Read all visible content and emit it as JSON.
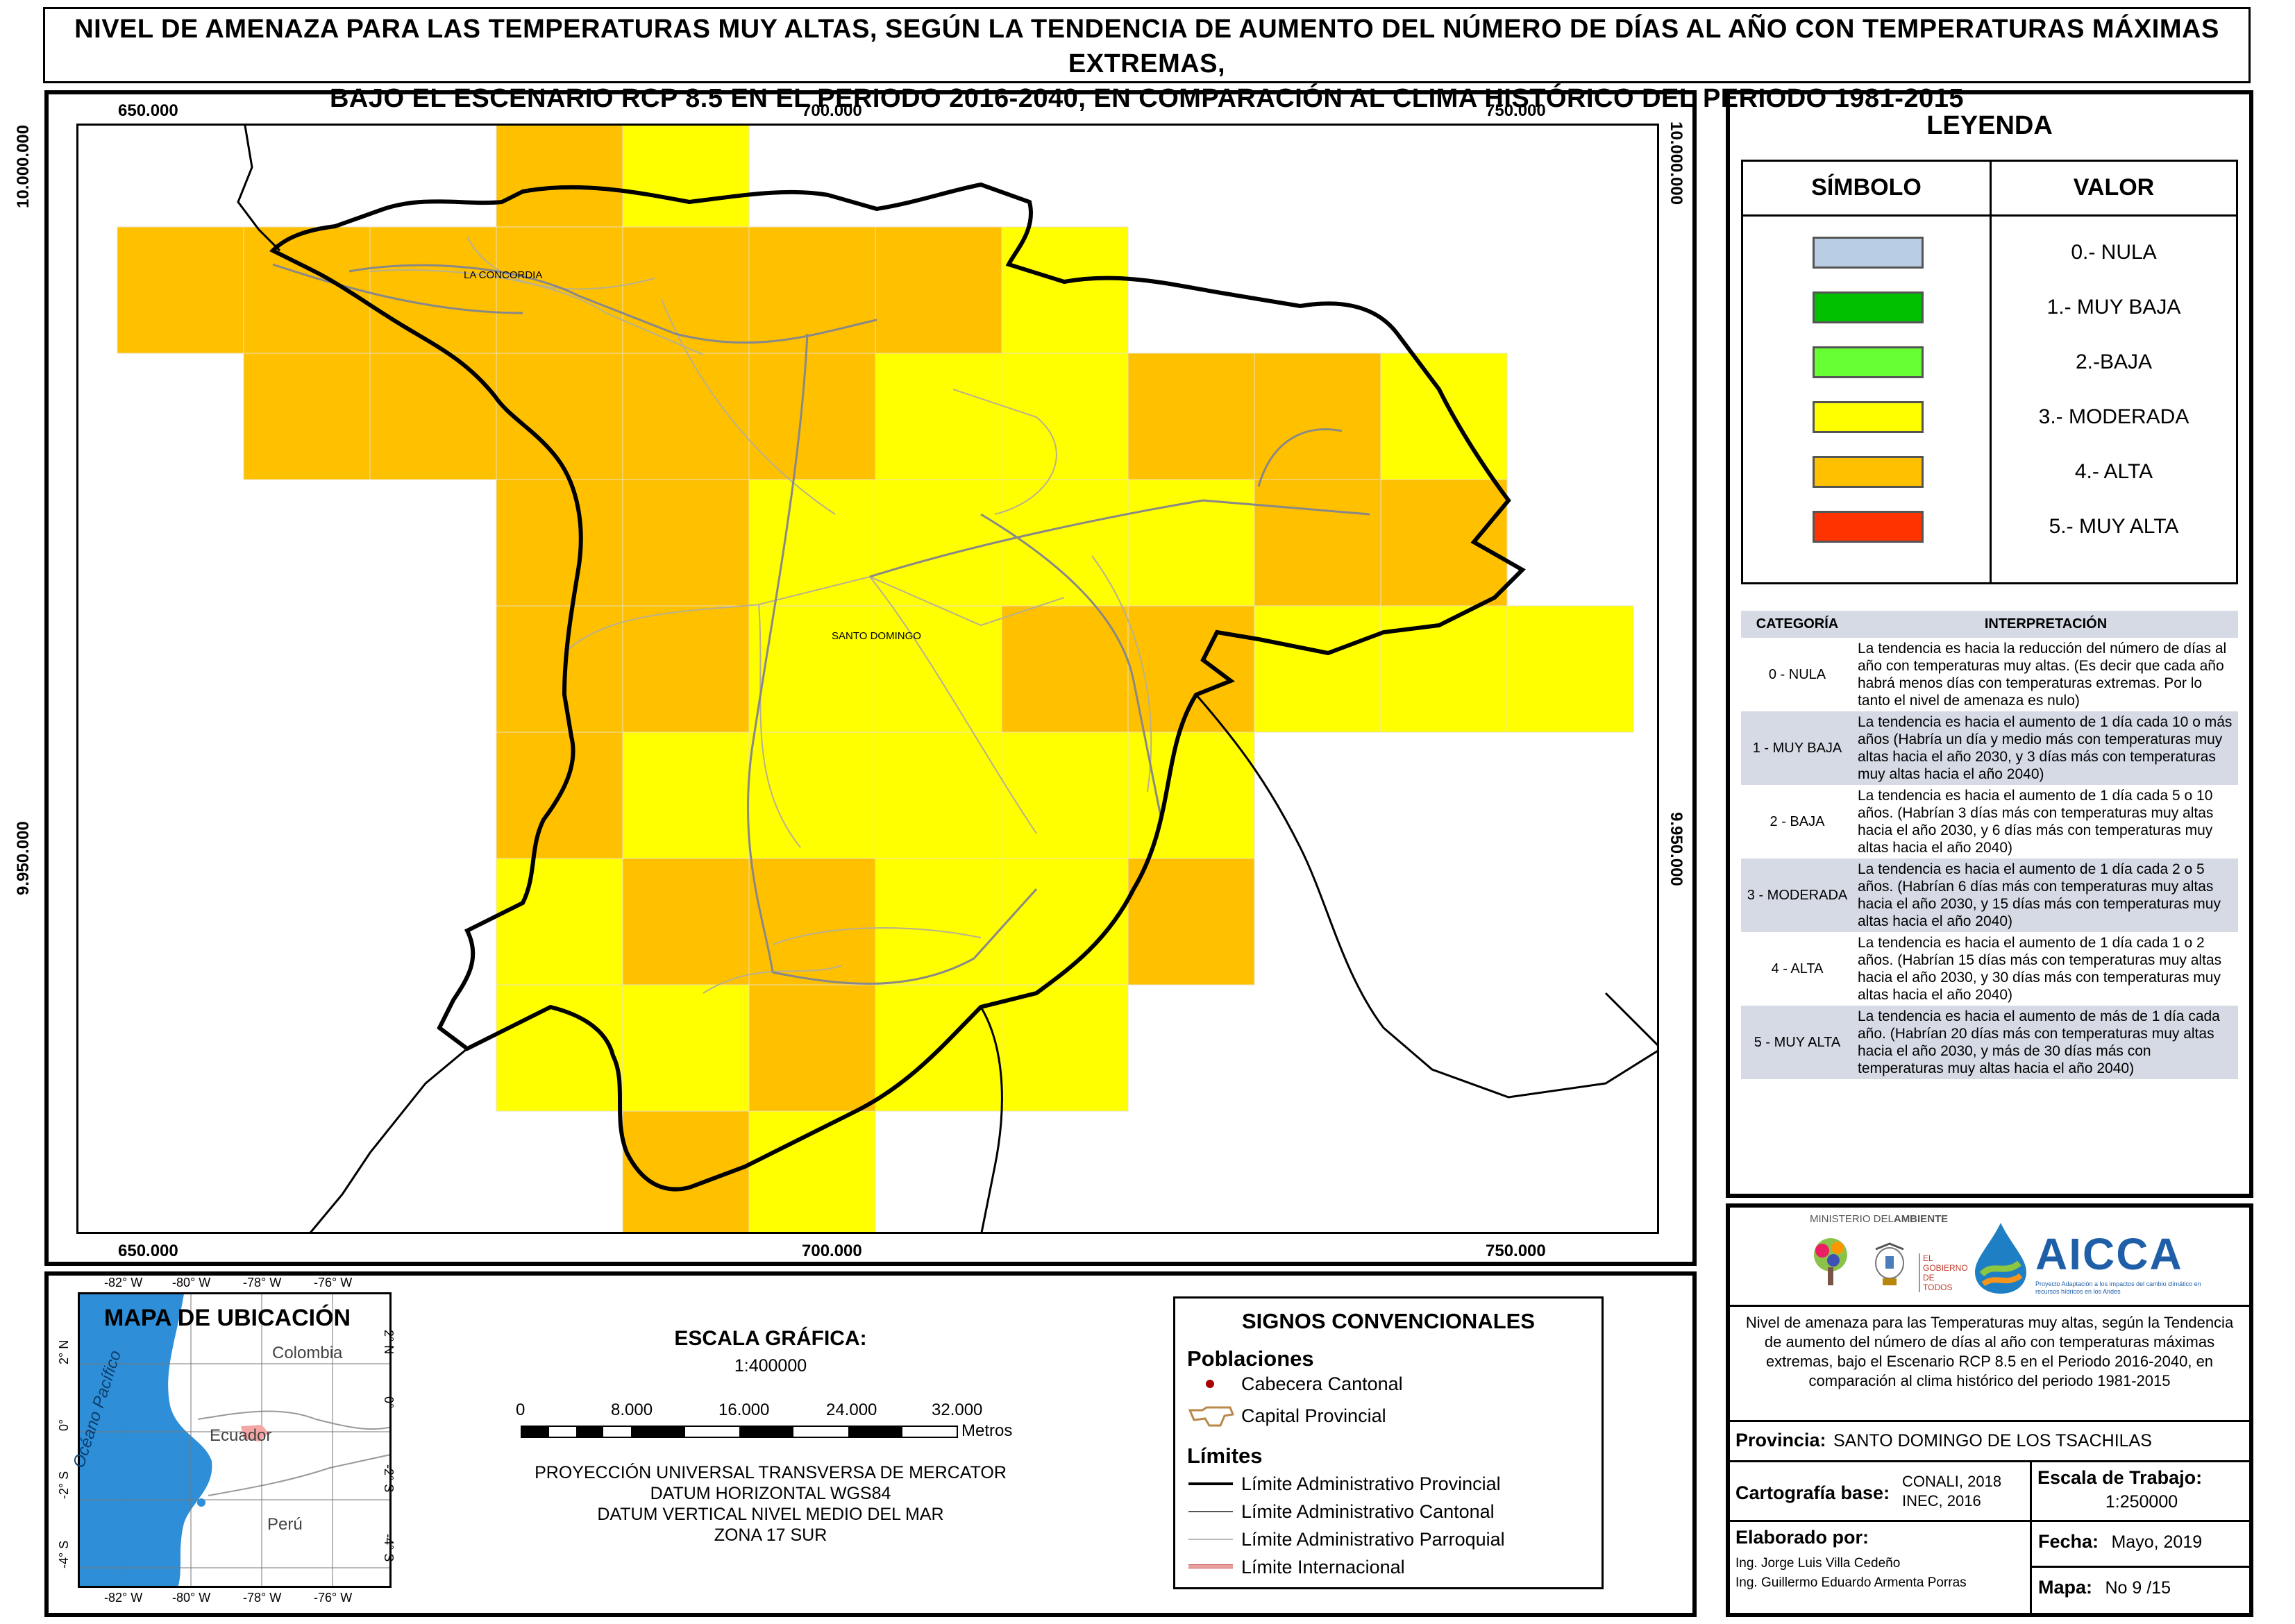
{
  "title": {
    "line1": "NIVEL DE AMENAZA PARA LAS TEMPERATURAS MUY ALTAS, SEGÚN LA TENDENCIA DE AUMENTO DEL NÚMERO DE DÍAS AL AÑO CON TEMPERATURAS MÁXIMAS EXTREMAS,",
    "line2": "BAJO EL ESCENARIO RCP 8.5 EN EL PERIODO 2016-2040, EN COMPARACIÓN AL CLIMA HISTÓRICO DEL PERIODO 1981-2015"
  },
  "map": {
    "x_ticks": [
      "650.000",
      "700.000",
      "750.000"
    ],
    "y_ticks": [
      "10.000.000",
      "9.950.000"
    ],
    "places": [
      "LA CONCORDIA",
      "SANTO DOMINGO"
    ],
    "colors": {
      "alta": "#ffc000",
      "moderada": "#ffff00"
    }
  },
  "legend": {
    "title": "LEYENDA",
    "col_symbol": "SÍMBOLO",
    "col_value": "VALOR",
    "items": [
      {
        "label": "0.- NULA",
        "color": "#b9cde5"
      },
      {
        "label": "1.- MUY BAJA",
        "color": "#00c000"
      },
      {
        "label": "2.-BAJA",
        "color": "#66ff33"
      },
      {
        "label": "3.- MODERADA",
        "color": "#ffff00"
      },
      {
        "label": "4.- ALTA",
        "color": "#ffc000"
      },
      {
        "label": "5.- MUY ALTA",
        "color": "#ff3300"
      }
    ]
  },
  "categories": {
    "col_cat": "CATEGORÍA",
    "col_interp": "INTERPRETACIÓN",
    "rows": [
      {
        "cat": "0 - NULA",
        "text": "La tendencia es hacia la reducción del número de días al año con temperaturas muy altas. (Es decir que cada año habrá menos días con temperaturas extremas. Por lo tanto el nivel de amenaza es nulo)"
      },
      {
        "cat": "1 - MUY BAJA",
        "text": "La tendencia es hacia el aumento de 1 día cada 10 o más años (Habría un día y medio más con temperaturas muy altas hacia el año 2030, y 3 días más con temperaturas muy altas hacia el año 2040)"
      },
      {
        "cat": "2 - BAJA",
        "text": "La tendencia es hacia el aumento de 1 día cada 5 o 10 años. (Habrían 3 días más con temperaturas muy altas hacia el año 2030, y 6 días más con temperaturas muy altas hacia el año 2040)"
      },
      {
        "cat": "3 - MODERADA",
        "text": "La tendencia es hacia el aumento de 1 día cada 2 o 5 años. (Habrían 6 días más con temperaturas muy altas hacia el año 2030, y 15 días más con temperaturas muy altas hacia el año 2040)"
      },
      {
        "cat": "4 - ALTA",
        "text": "La tendencia es hacia el aumento de 1 día cada 1 o 2 años. (Habrían 15 días más con temperaturas muy altas hacia el año 2030, y 30 días más con temperaturas muy altas hacia el año 2040)"
      },
      {
        "cat": "5 - MUY ALTA",
        "text": "La tendencia es hacia el aumento de más de 1 día cada año. (Habrían 20 días más con temperaturas muy altas hacia el año 2030, y más de 30 días más con temperaturas muy altas hacia el año 2040)"
      }
    ]
  },
  "location_map": {
    "title": "MAPA DE UBICACIÓN",
    "lon_ticks": [
      "-82° W",
      "-80° W",
      "-78° W",
      "-76° W"
    ],
    "lat_ticks": [
      "2° N",
      "0°",
      "-2° S",
      "-4° S"
    ],
    "countries": [
      "Colombia",
      "Ecuador",
      "Perú"
    ],
    "ocean": "Océano Pacífico"
  },
  "scale": {
    "title": "ESCALA GRÁFICA:",
    "ratio": "1:400000",
    "ticks": [
      "0",
      "8.000",
      "16.000",
      "24.000",
      "32.000"
    ],
    "unit": "Metros",
    "projection": [
      "PROYECCIÓN UNIVERSAL TRANSVERSA DE MERCATOR",
      "DATUM HORIZONTAL WGS84",
      "DATUM VERTICAL NIVEL MEDIO DEL MAR",
      "ZONA 17 SUR"
    ]
  },
  "signs": {
    "title": "SIGNOS CONVENCIONALES",
    "poblaciones": "Poblaciones",
    "cabecera": "Cabecera Cantonal",
    "capital": "Capital Provincial",
    "limites": "Límites",
    "lim_prov": "Límite Administrativo Provincial",
    "lim_cant": "Límite Administrativo Cantonal",
    "lim_parr": "Límite Administrativo Parroquial",
    "lim_int": "Límite Internacional"
  },
  "logos": {
    "ministerio_a": "MINISTERIO DEL",
    "ministerio_b": "AMBIENTE",
    "aicca": "AICCA",
    "aicca_sub": "Proyecto Adaptación a los impactos del cambio climático en recursos hídricos en los Andes",
    "gobierno": "EL GOBIERNO DE TODOS"
  },
  "info": {
    "description": "Nivel de amenaza para las Temperaturas muy altas, según la Tendencia de aumento del número de días al año con temperaturas máximas extremas, bajo el Escenario RCP 8.5 en el Periodo 2016-2040, en comparación al clima histórico del periodo 1981-2015",
    "provincia_label": "Provincia:",
    "provincia": "SANTO DOMINGO DE LOS TSACHILAS",
    "cartografia_label": "Cartografía base:",
    "cartografia_1": "CONALI, 2018",
    "cartografia_2": "INEC, 2016",
    "escala_label": "Escala de Trabajo:",
    "escala": "1:250000",
    "elaborado_label": "Elaborado por:",
    "autor1": "Ing. Jorge Luis Villa Cedeño",
    "autor2": "Ing. Guillermo Eduardo Armenta Porras",
    "fecha_label": "Fecha:",
    "fecha": "Mayo, 2019",
    "mapa_label": "Mapa:",
    "mapa": "No 9 /15"
  }
}
